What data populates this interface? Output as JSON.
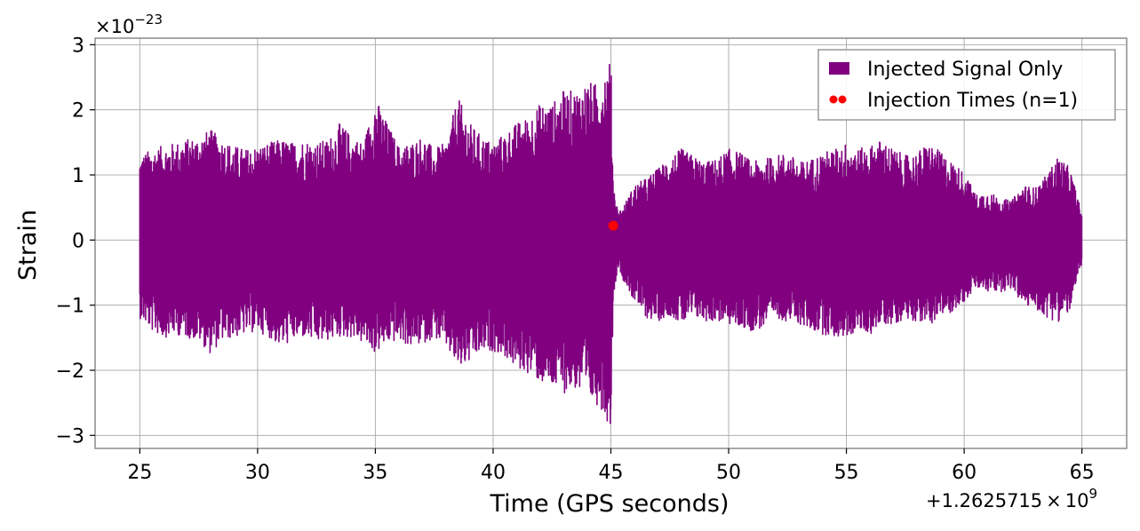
{
  "chart_data": {
    "type": "line",
    "title": "",
    "xlabel": "Time (GPS seconds)",
    "ylabel": "Strain",
    "x_offset_label": {
      "base": "+1.2625715",
      "times": "×",
      "power_base": "10",
      "power_exp": "9"
    },
    "y_multiplier_label": {
      "times": "×",
      "power_base": "10",
      "power_exp": "−23"
    },
    "xlim": [
      23.1,
      66.9
    ],
    "ylim": [
      -3.2,
      3.1
    ],
    "x_ticks": [
      25,
      30,
      35,
      40,
      45,
      50,
      55,
      60,
      65
    ],
    "x_tick_labels": [
      "25",
      "30",
      "35",
      "40",
      "45",
      "50",
      "55",
      "60",
      "65"
    ],
    "y_ticks": [
      -3,
      -2,
      -1,
      0,
      1,
      2,
      3
    ],
    "y_tick_labels": [
      "−3",
      "−2",
      "−1",
      "0",
      "1",
      "2",
      "3"
    ],
    "grid": true,
    "legend_position": "top-right",
    "series": [
      {
        "name": "Injected Signal Only",
        "kind": "oscillating strain trace (envelope of peaks, units of 1e-23)",
        "color": "#800080",
        "x": [
          25,
          25.5,
          26,
          26.5,
          27,
          27.5,
          28,
          28.5,
          29,
          29.5,
          30,
          30.5,
          31,
          31.5,
          32,
          32.5,
          33,
          33.5,
          34,
          34.5,
          35,
          35.5,
          36,
          36.5,
          37,
          37.5,
          38,
          38.5,
          39,
          39.5,
          40,
          40.5,
          41,
          41.5,
          42,
          42.5,
          43,
          43.5,
          44,
          44.3,
          44.6,
          44.8,
          45.0,
          45.1,
          45.3,
          45.5,
          46,
          46.5,
          47,
          47.5,
          48,
          48.5,
          49,
          49.5,
          50,
          50.5,
          51,
          51.5,
          52,
          52.5,
          53,
          53.5,
          54,
          54.5,
          55,
          55.5,
          56,
          56.5,
          57,
          57.5,
          58,
          58.5,
          59,
          59.5,
          60,
          60.5,
          61,
          61.5,
          62,
          62.5,
          63,
          63.5,
          64,
          64.5,
          65
        ],
        "upper": [
          1.3,
          1.4,
          1.45,
          1.5,
          1.55,
          1.6,
          1.7,
          1.55,
          1.45,
          1.4,
          1.45,
          1.5,
          1.55,
          1.5,
          1.55,
          1.5,
          1.55,
          1.8,
          1.6,
          1.5,
          2.2,
          1.8,
          1.45,
          1.5,
          1.6,
          1.4,
          1.5,
          2.2,
          1.8,
          1.6,
          1.5,
          1.65,
          1.8,
          1.9,
          2.1,
          2.1,
          2.3,
          2.3,
          2.45,
          2.4,
          2.5,
          2.7,
          2.8,
          0.9,
          0.45,
          0.5,
          0.85,
          0.95,
          1.1,
          1.3,
          1.4,
          1.3,
          1.2,
          1.25,
          1.4,
          1.35,
          1.2,
          1.25,
          1.3,
          1.35,
          1.2,
          1.25,
          1.35,
          1.4,
          1.5,
          1.4,
          1.45,
          1.55,
          1.4,
          1.3,
          1.35,
          1.5,
          1.35,
          1.2,
          1.05,
          0.7,
          0.75,
          0.65,
          0.6,
          0.85,
          0.8,
          1.0,
          1.3,
          1.1,
          0.4
        ],
        "lower": [
          -1.2,
          -1.4,
          -1.5,
          -1.45,
          -1.5,
          -1.55,
          -1.75,
          -1.55,
          -1.5,
          -1.45,
          -1.4,
          -1.5,
          -1.65,
          -1.55,
          -1.5,
          -1.6,
          -1.55,
          -1.5,
          -1.5,
          -1.6,
          -1.75,
          -1.6,
          -1.55,
          -1.65,
          -1.6,
          -1.5,
          -1.65,
          -2.0,
          -1.9,
          -1.75,
          -1.7,
          -1.8,
          -2.0,
          -2.05,
          -2.2,
          -2.3,
          -2.35,
          -2.3,
          -2.55,
          -2.5,
          -2.6,
          -2.75,
          -2.9,
          -0.9,
          -0.4,
          -0.6,
          -0.95,
          -1.2,
          -1.25,
          -1.15,
          -1.3,
          -1.2,
          -1.25,
          -1.25,
          -1.3,
          -1.35,
          -1.4,
          -1.35,
          -1.2,
          -1.25,
          -1.3,
          -1.4,
          -1.45,
          -1.5,
          -1.5,
          -1.4,
          -1.45,
          -1.3,
          -1.3,
          -1.2,
          -1.25,
          -1.3,
          -1.2,
          -1.1,
          -0.95,
          -0.75,
          -0.8,
          -0.8,
          -0.75,
          -1.0,
          -1.05,
          -1.2,
          -1.25,
          -1.1,
          -0.35
        ]
      },
      {
        "name": "Injection Times (n=1)",
        "kind": "scatter",
        "color": "#ff0000",
        "x": [
          45.1
        ],
        "y": [
          0.22
        ]
      }
    ]
  }
}
